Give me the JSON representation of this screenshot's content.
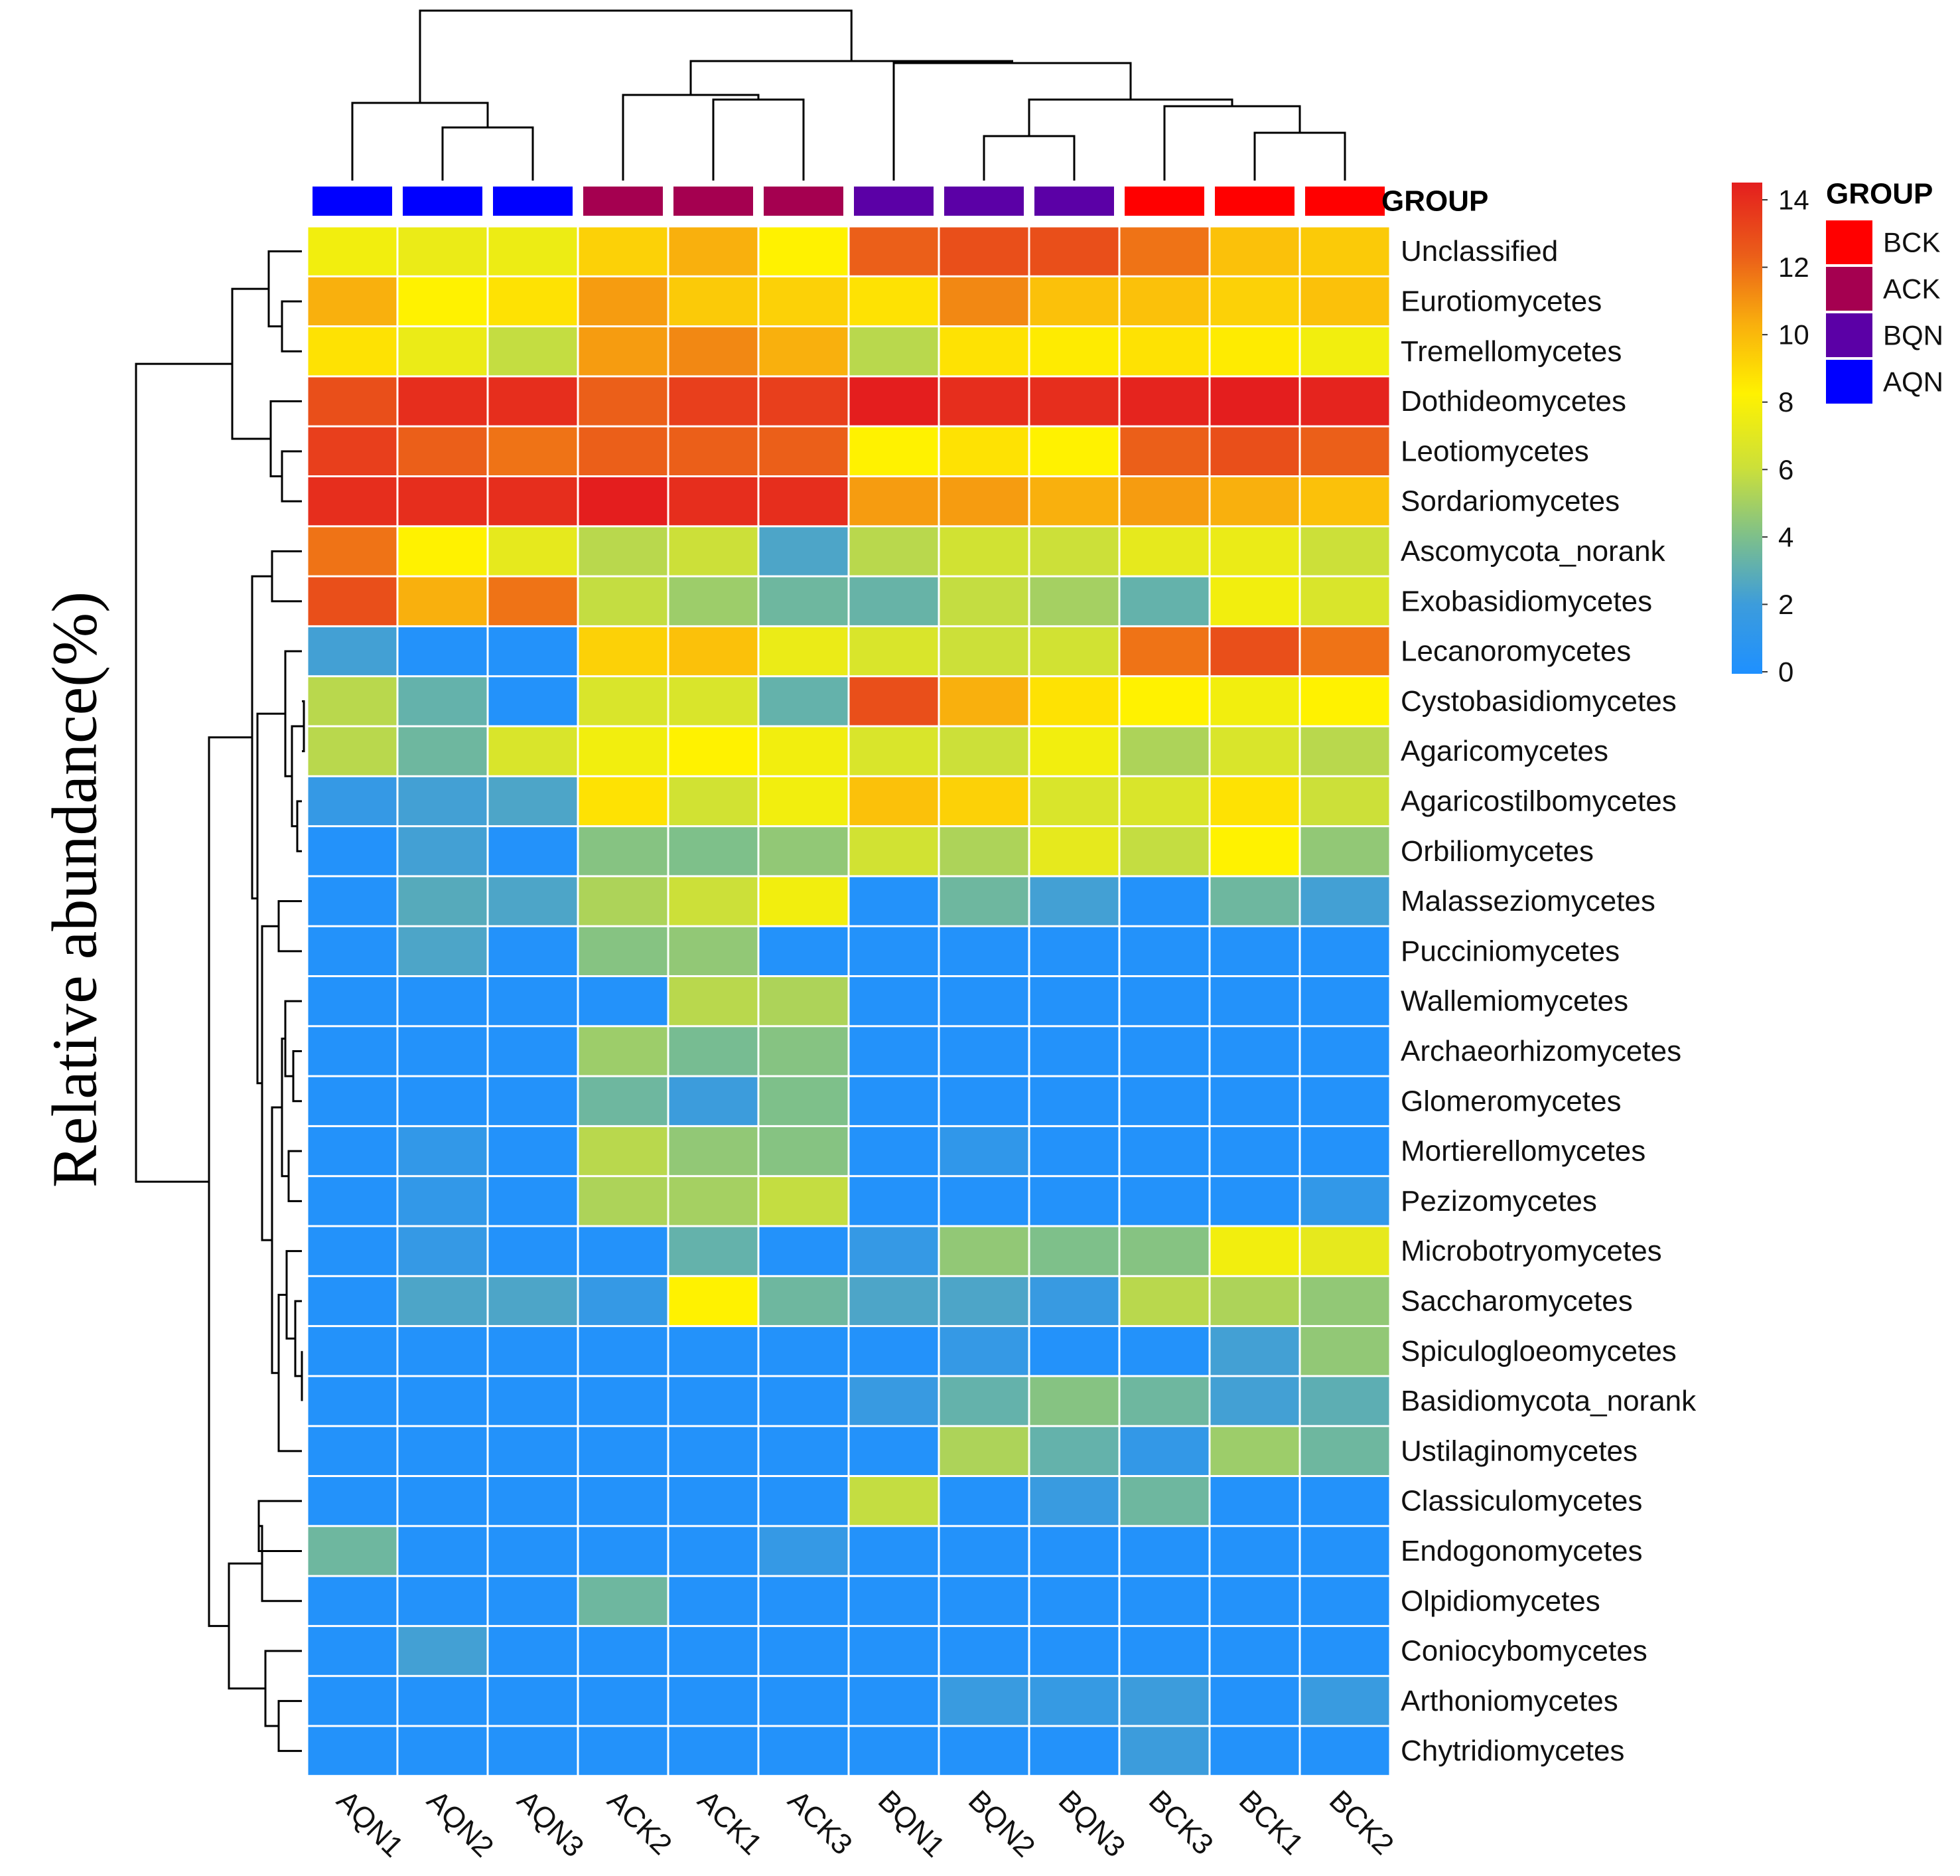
{
  "chart_data": {
    "type": "heatmap",
    "ylabel": "Relative abundance(%)",
    "group_annotation_label": "GROUP",
    "columns": [
      "AQN1",
      "AQN2",
      "AQN3",
      "ACK2",
      "ACK1",
      "ACK3",
      "BQN1",
      "BQN2",
      "BQN3",
      "BCK3",
      "BCK1",
      "BCK2"
    ],
    "column_groups": [
      "AQN",
      "AQN",
      "AQN",
      "ACK",
      "ACK",
      "ACK",
      "BQN",
      "BQN",
      "BQN",
      "BCK",
      "BCK",
      "BCK"
    ],
    "rows": [
      "Unclassified",
      "Eurotiomycetes",
      "Tremellomycetes",
      "Dothideomycetes",
      "Leotiomycetes",
      "Sordariomycetes",
      "Ascomycota_norank",
      "Exobasidiomycetes",
      "Lecanoromycetes",
      "Cystobasidiomycetes",
      "Agaricomycetes",
      "Agaricostilbomycetes",
      "Orbiliomycetes",
      "Malasseziomycetes",
      "Pucciniomycetes",
      "Wallemiomycetes",
      "Archaeorhizomycetes",
      "Glomeromycetes",
      "Mortierellomycetes",
      "Pezizomycetes",
      "Microbotryomycetes",
      "Saccharomycetes",
      "Spiculogloeomycetes",
      "Basidiomycota_norank",
      "Ustilaginomycetes",
      "Classiculomycetes",
      "Endogonomycetes",
      "Olpidiomycetes",
      "Coniocybomycetes",
      "Arthoniomycetes",
      "Chytridiomycetes"
    ],
    "values": [
      [
        7.5,
        7.2,
        7.3,
        9.0,
        10.0,
        8.0,
        12.0,
        12.5,
        12.5,
        11.5,
        9.5,
        9.2
      ],
      [
        10.0,
        8.0,
        8.5,
        10.5,
        9.2,
        9.0,
        8.5,
        11.0,
        9.5,
        9.5,
        9.0,
        9.5
      ],
      [
        8.5,
        7.2,
        5.8,
        10.5,
        11.0,
        10.0,
        5.5,
        8.5,
        8.2,
        8.5,
        8.2,
        7.5
      ],
      [
        12.5,
        13.5,
        13.5,
        12.0,
        13.0,
        13.0,
        14.0,
        13.5,
        13.5,
        13.8,
        14.0,
        13.8
      ],
      [
        13.0,
        12.0,
        11.5,
        12.0,
        12.0,
        12.0,
        8.0,
        8.5,
        8.0,
        12.0,
        12.5,
        12.0
      ],
      [
        13.5,
        13.5,
        13.5,
        14.0,
        13.5,
        13.5,
        10.5,
        10.5,
        10.0,
        10.5,
        10.0,
        9.5
      ],
      [
        11.5,
        8.0,
        7.0,
        5.5,
        6.0,
        2.5,
        5.5,
        6.2,
        6.0,
        7.0,
        7.2,
        6.0
      ],
      [
        12.5,
        10.0,
        11.5,
        5.8,
        4.8,
        3.5,
        3.3,
        5.8,
        5.0,
        3.2,
        7.5,
        6.5
      ],
      [
        2.2,
        0.3,
        0.3,
        9.0,
        9.5,
        7.2,
        6.5,
        6.0,
        6.2,
        11.5,
        12.5,
        11.5
      ],
      [
        5.5,
        3.2,
        0.3,
        6.5,
        6.5,
        3.2,
        12.5,
        10.0,
        8.5,
        8.0,
        7.5,
        8.0
      ],
      [
        5.5,
        3.5,
        6.5,
        7.5,
        8.0,
        7.5,
        6.5,
        6.0,
        7.5,
        5.2,
        6.5,
        5.5
      ],
      [
        1.5,
        2.2,
        2.5,
        8.5,
        6.2,
        7.5,
        9.5,
        9.0,
        6.5,
        6.5,
        8.5,
        6.0
      ],
      [
        0.3,
        2.2,
        0.3,
        4.2,
        4.0,
        4.5,
        6.2,
        5.2,
        7.0,
        5.8,
        8.0,
        4.5
      ],
      [
        0.3,
        2.8,
        2.5,
        5.2,
        6.0,
        7.5,
        0.3,
        3.5,
        2.2,
        0.3,
        3.5,
        2.2
      ],
      [
        0.3,
        2.5,
        0.3,
        4.2,
        4.5,
        0.3,
        0.3,
        0.3,
        0.3,
        0.3,
        0.3,
        0.3
      ],
      [
        0.3,
        0.3,
        0.3,
        0.3,
        5.5,
        5.2,
        0.3,
        0.3,
        0.3,
        0.3,
        0.3,
        0.3
      ],
      [
        0.3,
        0.3,
        0.3,
        4.8,
        3.8,
        4.2,
        0.3,
        0.3,
        0.3,
        0.3,
        0.3,
        0.3
      ],
      [
        0.3,
        0.3,
        0.3,
        3.5,
        2.0,
        4.0,
        0.3,
        0.3,
        0.3,
        0.3,
        0.3,
        0.3
      ],
      [
        0.3,
        1.3,
        0.3,
        5.5,
        4.5,
        4.2,
        0.3,
        1.2,
        0.3,
        0.3,
        0.3,
        0.3
      ],
      [
        0.3,
        1.3,
        0.3,
        5.2,
        5.0,
        5.8,
        0.3,
        0.3,
        0.3,
        0.3,
        0.3,
        1.3
      ],
      [
        0.3,
        1.5,
        0.3,
        0.3,
        3.2,
        0.3,
        1.5,
        4.5,
        4.0,
        4.2,
        7.5,
        7.0
      ],
      [
        0.3,
        2.5,
        2.5,
        1.5,
        8.0,
        3.5,
        2.5,
        2.5,
        1.7,
        5.5,
        5.2,
        4.5
      ],
      [
        0.3,
        0.3,
        0.3,
        0.3,
        0.3,
        0.3,
        0.3,
        1.5,
        0.3,
        0.3,
        2.2,
        4.5
      ],
      [
        0.3,
        0.3,
        0.3,
        0.3,
        0.3,
        0.3,
        1.7,
        3.2,
        4.2,
        3.5,
        2.2,
        3.0
      ],
      [
        0.3,
        0.3,
        0.3,
        0.3,
        0.3,
        0.3,
        0.3,
        5.2,
        3.2,
        1.4,
        4.8,
        3.5
      ],
      [
        0.3,
        0.3,
        0.3,
        0.3,
        0.3,
        0.3,
        5.8,
        0.3,
        1.8,
        3.5,
        0.3,
        0.3
      ],
      [
        3.5,
        0.3,
        0.3,
        0.3,
        0.3,
        1.5,
        0.3,
        0.3,
        0.3,
        0.3,
        0.3,
        0.3
      ],
      [
        0.3,
        0.3,
        0.3,
        3.5,
        0.3,
        0.3,
        0.3,
        0.3,
        0.3,
        0.3,
        0.3,
        0.3
      ],
      [
        0.3,
        2.2,
        0.3,
        0.3,
        0.3,
        0.3,
        0.3,
        0.3,
        0.3,
        0.3,
        0.3,
        0.3
      ],
      [
        0.3,
        0.3,
        0.3,
        0.3,
        0.3,
        0.3,
        0.3,
        1.8,
        1.6,
        2.0,
        0.3,
        1.8
      ],
      [
        0.3,
        0.3,
        0.3,
        0.3,
        0.3,
        0.3,
        0.3,
        0.3,
        0.3,
        2.0,
        0.3,
        0.3
      ]
    ],
    "colorbar": {
      "min": 0,
      "max": 14,
      "ticks": [
        "14",
        "12",
        "10",
        "8",
        "6",
        "4",
        "2",
        "0"
      ]
    },
    "legend": {
      "title": "GROUP",
      "entries": [
        {
          "label": "BCK",
          "color": "#FF0000"
        },
        {
          "label": "ACK",
          "color": "#A50050"
        },
        {
          "label": "BQN",
          "color": "#5B00A6"
        },
        {
          "label": "AQN",
          "color": "#0000FF"
        }
      ]
    }
  }
}
